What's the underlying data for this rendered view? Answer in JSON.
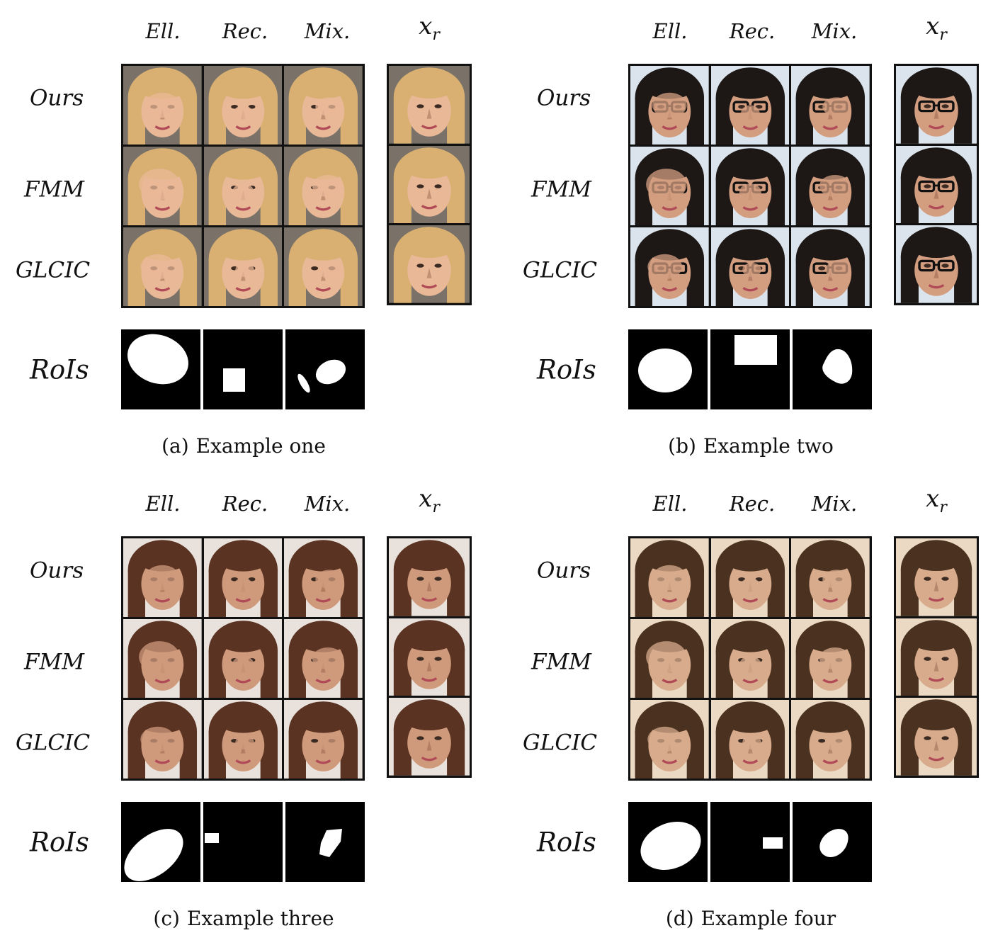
{
  "column_headers": [
    "Ell.",
    "Rec.",
    "Mix."
  ],
  "reference_label": "x",
  "reference_sub": "r",
  "row_headers": [
    "Ours",
    "FMM",
    "GLCIC"
  ],
  "rois_label": "RoIs",
  "panels": [
    {
      "tag": "(a)",
      "caption": "Example one",
      "hair": "#d9b071",
      "bg": "#7a7268",
      "skin": "#e9b897"
    },
    {
      "tag": "(b)",
      "caption": "Example two",
      "hair": "#1d1815",
      "bg": "#dbe4ec",
      "skin": "#d39d80",
      "glasses": true
    },
    {
      "tag": "(c)",
      "caption": "Example three",
      "hair": "#5a3322",
      "bg": "#e9e2dc",
      "skin": "#cf9a7c"
    },
    {
      "tag": "(d)",
      "caption": "Example four",
      "hair": "#4b3220",
      "bg": "#ebd9c3",
      "skin": "#d7ab8c"
    }
  ]
}
